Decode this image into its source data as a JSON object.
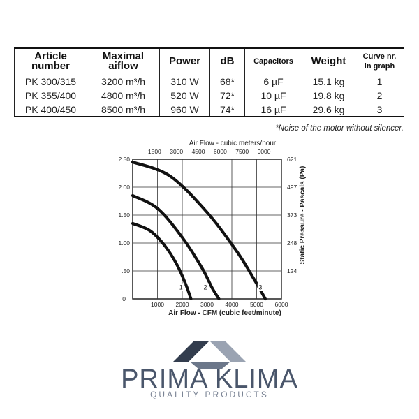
{
  "table": {
    "headers": [
      {
        "lines": [
          "Article",
          "number"
        ]
      },
      {
        "lines": [
          "Maximal",
          "aiflow"
        ]
      },
      {
        "lines": [
          "Power"
        ]
      },
      {
        "lines": [
          "dB"
        ]
      },
      {
        "lines": [
          "Capacitors"
        ]
      },
      {
        "lines": [
          "Weight"
        ]
      },
      {
        "lines": [
          "Curve nr.",
          "in graph"
        ]
      }
    ],
    "rows": [
      [
        "PK 300/315",
        "3200 m³/h",
        "310 W",
        "68*",
        "6 µF",
        "15.1 kg",
        "1"
      ],
      [
        "PK 355/400",
        "4800 m³/h",
        "520 W",
        "72*",
        "10 µF",
        "19.8 kg",
        "2"
      ],
      [
        "PK 400/450",
        "8500 m³/h",
        "960 W",
        "74*",
        "16 µF",
        "29.6 kg",
        "3"
      ]
    ],
    "note": "*Noise of the motor without silencer."
  },
  "chart_data": {
    "type": "line",
    "top_axis_title": "Air Flow - cubic meters/hour",
    "top_ticks": [
      "1500",
      "3000",
      "4500",
      "6000",
      "7500",
      "9000"
    ],
    "top_tick_values": [
      1500,
      3000,
      4500,
      6000,
      7500,
      9000
    ],
    "xlabel": "Air Flow - CFM (cubic feet/minute)",
    "x_ticks": [
      "1000",
      "2000",
      "3000",
      "4000",
      "5000",
      "6000"
    ],
    "x_tick_values": [
      1000,
      2000,
      3000,
      4000,
      5000,
      6000
    ],
    "xlim": [
      0,
      6000
    ],
    "y_ticks": [
      "0",
      ".50",
      "1.00",
      "1.50",
      "2.00",
      "2.50"
    ],
    "y_tick_values": [
      0,
      0.5,
      1.0,
      1.5,
      2.0,
      2.5
    ],
    "ylim": [
      0,
      2.5
    ],
    "right_axis_title": "Static Pressure - Pascals (Pa)",
    "right_ticks": [
      "124",
      "248",
      "373",
      "497",
      "621"
    ],
    "right_tick_values": [
      0.5,
      1.0,
      1.5,
      2.0,
      2.5
    ],
    "grid": true,
    "series": [
      {
        "label": "1",
        "label_at": [
          1950,
          0.18
        ],
        "points": [
          [
            0,
            1.35
          ],
          [
            700,
            1.22
          ],
          [
            1300,
            0.95
          ],
          [
            1800,
            0.6
          ],
          [
            2150,
            0.25
          ],
          [
            2350,
            0.0
          ]
        ]
      },
      {
        "label": "2",
        "label_at": [
          2930,
          0.18
        ],
        "points": [
          [
            0,
            1.85
          ],
          [
            1000,
            1.62
          ],
          [
            2000,
            1.1
          ],
          [
            2800,
            0.55
          ],
          [
            3200,
            0.2
          ],
          [
            3480,
            0.0
          ]
        ]
      },
      {
        "label": "3",
        "label_at": [
          5150,
          0.18
        ],
        "points": [
          [
            0,
            2.45
          ],
          [
            1500,
            2.2
          ],
          [
            3000,
            1.55
          ],
          [
            4200,
            0.85
          ],
          [
            4900,
            0.35
          ],
          [
            5350,
            0.0
          ]
        ]
      }
    ]
  },
  "logo": {
    "name": "PRIMA KLIMA",
    "tagline": "QUALITY PRODUCTS",
    "colors": {
      "primary": "#4a566b",
      "dark": "#333d4e",
      "light": "#9aa3b2"
    }
  }
}
